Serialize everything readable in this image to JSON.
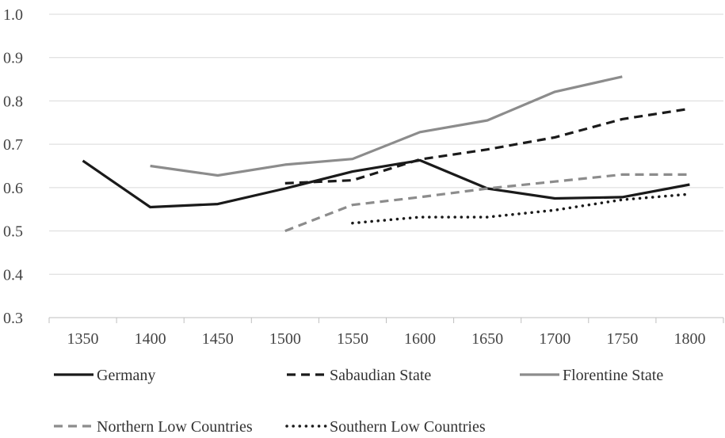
{
  "chart_data": {
    "type": "line",
    "categories": [
      "1350",
      "1400",
      "1450",
      "1500",
      "1550",
      "1600",
      "1650",
      "1700",
      "1750",
      "1800"
    ],
    "ylim": [
      0.3,
      1.0
    ],
    "yticks": [
      "0.3",
      "0.4",
      "0.5",
      "0.6",
      "0.7",
      "0.8",
      "0.9",
      "1.0"
    ],
    "grid": "horizontal",
    "legend_position": "bottom",
    "series": [
      {
        "name": "Germany",
        "color": "#1a1a1a",
        "style": "solid",
        "values": [
          0.662,
          0.555,
          0.562,
          0.598,
          0.637,
          0.663,
          0.598,
          0.575,
          0.578,
          0.607
        ]
      },
      {
        "name": "Sabaudian State",
        "color": "#1a1a1a",
        "style": "dashed",
        "values": [
          null,
          null,
          null,
          0.61,
          0.617,
          0.665,
          0.688,
          0.716,
          0.758,
          0.782
        ]
      },
      {
        "name": "Florentine State",
        "color": "#8c8c8c",
        "style": "solid",
        "values": [
          null,
          0.65,
          0.628,
          0.653,
          0.666,
          0.728,
          0.755,
          0.821,
          0.856,
          null
        ]
      },
      {
        "name": "Northern Low Countries",
        "color": "#8c8c8c",
        "style": "dashed",
        "values": [
          null,
          null,
          null,
          0.5,
          0.56,
          0.578,
          0.598,
          0.614,
          0.63,
          0.63
        ]
      },
      {
        "name": "Southern Low Countries",
        "color": "#1a1a1a",
        "style": "dotted",
        "values": [
          null,
          null,
          null,
          null,
          0.518,
          0.532,
          0.532,
          0.548,
          0.572,
          0.585
        ]
      }
    ]
  }
}
